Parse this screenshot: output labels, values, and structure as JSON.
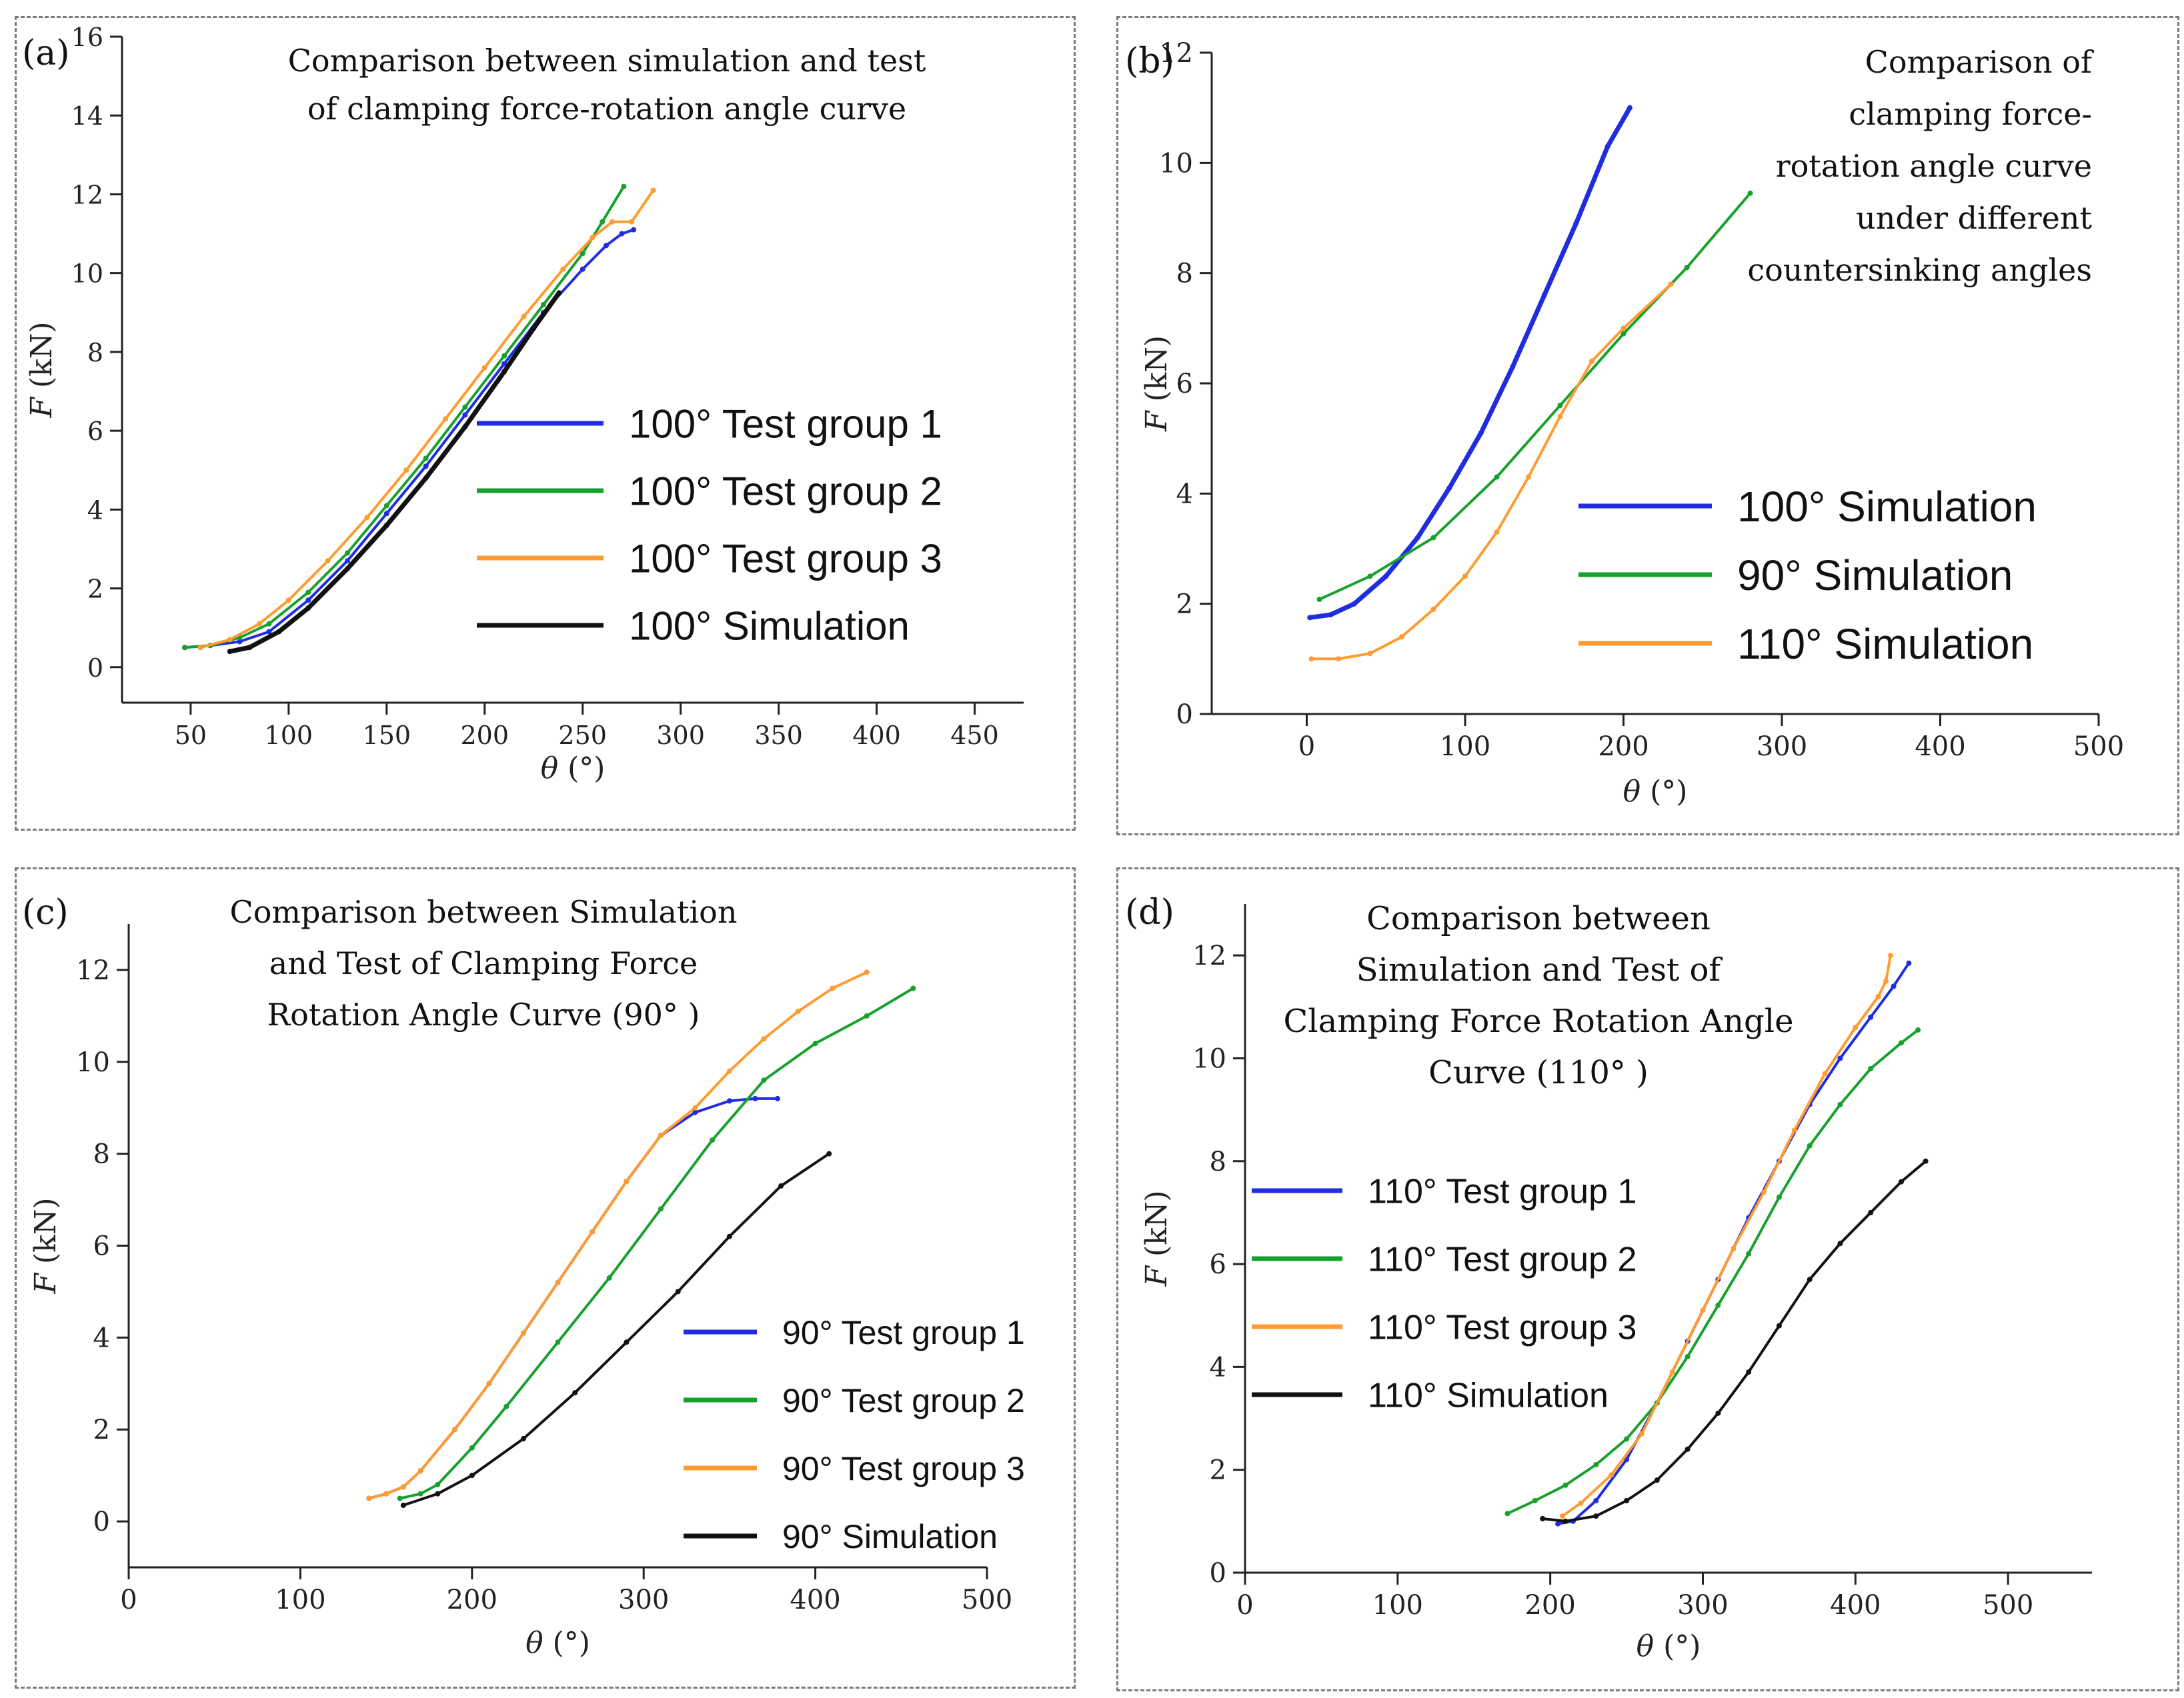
{
  "chart_data": [
    {
      "panel_label": "(a)",
      "type": "line",
      "title_lines": [
        "Comparison between simulation and test",
        "of clamping force-rotation angle curve"
      ],
      "xlabel_var": "θ",
      "xlabel_unit": " (°)",
      "ylabel_var": "F",
      "ylabel_unit": " (kN)",
      "xlim": [
        15,
        475
      ],
      "ylim": [
        -0.9,
        16
      ],
      "xticks": [
        50,
        100,
        150,
        200,
        250,
        300,
        350,
        400,
        450
      ],
      "yticks": [
        0,
        2,
        4,
        6,
        8,
        10,
        12,
        14,
        16
      ],
      "legend_position": "right",
      "series": [
        {
          "name": "100°  Test group 1",
          "color": "#1f2de0",
          "x": [
            47,
            60,
            75,
            90,
            110,
            130,
            150,
            170,
            190,
            210,
            230,
            250,
            262,
            270,
            276
          ],
          "y": [
            0.5,
            0.55,
            0.65,
            0.9,
            1.7,
            2.7,
            3.9,
            5.1,
            6.4,
            7.7,
            9.0,
            10.1,
            10.7,
            11.0,
            11.1
          ]
        },
        {
          "name": "100°  Test group 2",
          "color": "#16a12c",
          "x": [
            47,
            60,
            75,
            90,
            110,
            130,
            150,
            170,
            190,
            210,
            230,
            250,
            260,
            271
          ],
          "y": [
            0.5,
            0.55,
            0.75,
            1.1,
            1.9,
            2.9,
            4.1,
            5.3,
            6.6,
            7.9,
            9.2,
            10.5,
            11.3,
            12.2
          ]
        },
        {
          "name": "100°  Test group 3",
          "color": "#ff9b30",
          "x": [
            55,
            70,
            85,
            100,
            120,
            140,
            160,
            180,
            200,
            220,
            240,
            255,
            265,
            275,
            286
          ],
          "y": [
            0.5,
            0.7,
            1.1,
            1.7,
            2.7,
            3.8,
            5.0,
            6.3,
            7.6,
            8.9,
            10.1,
            10.9,
            11.3,
            11.3,
            12.1
          ]
        },
        {
          "name": "100°  Simulation",
          "color": "#111111",
          "x": [
            70,
            80,
            95,
            110,
            130,
            150,
            170,
            190,
            210,
            225,
            238
          ],
          "y": [
            0.4,
            0.5,
            0.9,
            1.5,
            2.5,
            3.6,
            4.8,
            6.1,
            7.5,
            8.6,
            9.5
          ]
        }
      ]
    },
    {
      "panel_label": "(b)",
      "type": "line",
      "title_lines": [
        "Comparison of",
        "clamping force-",
        "rotation angle curve",
        "under different",
        "countersinking angles"
      ],
      "xlabel_var": "θ",
      "xlabel_unit": " (°)",
      "ylabel_var": "F",
      "ylabel_unit": " (kN)",
      "xlim": [
        -60,
        500
      ],
      "ylim": [
        0,
        12
      ],
      "xticks": [
        0,
        100,
        200,
        300,
        400,
        500
      ],
      "yticks": [
        0,
        2,
        4,
        6,
        8,
        10,
        12
      ],
      "legend_position": "right",
      "series": [
        {
          "name": "100°  Simulation",
          "color": "#1f2de0",
          "x": [
            2,
            15,
            30,
            50,
            70,
            90,
            110,
            130,
            150,
            170,
            190,
            204
          ],
          "y": [
            1.75,
            1.8,
            2.0,
            2.5,
            3.2,
            4.1,
            5.1,
            6.3,
            7.6,
            8.9,
            10.3,
            11.0
          ]
        },
        {
          "name": "90°  Simulation",
          "color": "#16a12c",
          "x": [
            8,
            40,
            80,
            120,
            160,
            200,
            240,
            280
          ],
          "y": [
            2.08,
            2.5,
            3.2,
            4.3,
            5.6,
            6.9,
            8.1,
            9.45
          ]
        },
        {
          "name": "110°  Simulation",
          "color": "#ff9b30",
          "x": [
            3,
            20,
            40,
            60,
            80,
            100,
            120,
            140,
            160,
            180,
            200,
            230
          ],
          "y": [
            1.0,
            1.0,
            1.1,
            1.4,
            1.9,
            2.5,
            3.3,
            4.3,
            5.4,
            6.4,
            7.0,
            7.8
          ]
        }
      ]
    },
    {
      "panel_label": "(c)",
      "type": "line",
      "title_lines": [
        "Comparison between Simulation",
        "and Test of Clamping Force",
        "Rotation Angle Curve (90°  )"
      ],
      "xlabel_var": "θ",
      "xlabel_unit": " (°)",
      "ylabel_var": "F",
      "ylabel_unit": " (kN)",
      "xlim": [
        0,
        500
      ],
      "ylim": [
        -1,
        13
      ],
      "xticks": [
        0,
        100,
        200,
        300,
        400,
        500
      ],
      "yticks": [
        0,
        2,
        4,
        6,
        8,
        10,
        12
      ],
      "legend_position": "lower right",
      "series": [
        {
          "name": "90°  Test group 1",
          "color": "#1f2de0",
          "x": [
            140,
            150,
            160,
            170,
            190,
            210,
            230,
            250,
            270,
            290,
            310,
            330,
            350,
            365,
            378
          ],
          "y": [
            0.5,
            0.6,
            0.75,
            1.1,
            2.0,
            3.0,
            4.1,
            5.2,
            6.3,
            7.4,
            8.4,
            8.9,
            9.15,
            9.2,
            9.2
          ]
        },
        {
          "name": "90°  Test group 2",
          "color": "#16a12c",
          "x": [
            158,
            170,
            180,
            200,
            220,
            250,
            280,
            310,
            340,
            370,
            400,
            430,
            457
          ],
          "y": [
            0.5,
            0.6,
            0.8,
            1.6,
            2.5,
            3.9,
            5.3,
            6.8,
            8.3,
            9.6,
            10.4,
            11.0,
            11.6
          ]
        },
        {
          "name": "90°  Test group 3",
          "color": "#ff9b30",
          "x": [
            140,
            150,
            160,
            170,
            190,
            210,
            230,
            250,
            270,
            290,
            310,
            330,
            350,
            370,
            390,
            410,
            430
          ],
          "y": [
            0.5,
            0.6,
            0.75,
            1.1,
            2.0,
            3.0,
            4.1,
            5.2,
            6.3,
            7.4,
            8.4,
            9.0,
            9.8,
            10.5,
            11.1,
            11.6,
            11.95
          ]
        },
        {
          "name": "90°  Simulation",
          "color": "#111111",
          "x": [
            160,
            180,
            200,
            230,
            260,
            290,
            320,
            350,
            380,
            408
          ],
          "y": [
            0.35,
            0.6,
            1.0,
            1.8,
            2.8,
            3.9,
            5.0,
            6.2,
            7.3,
            8.0
          ]
        }
      ]
    },
    {
      "panel_label": "(d)",
      "type": "line",
      "title_lines": [
        "Comparison between",
        "Simulation and Test of",
        "Clamping Force Rotation Angle",
        "Curve (110°  )"
      ],
      "xlabel_var": "θ",
      "xlabel_unit": " (°)",
      "ylabel_var": "F",
      "ylabel_unit": " (kN)",
      "xlim": [
        0,
        555
      ],
      "ylim": [
        0,
        13
      ],
      "xticks": [
        0,
        100,
        200,
        300,
        400,
        500
      ],
      "yticks": [
        0,
        2,
        4,
        6,
        8,
        10,
        12
      ],
      "legend_position": "left",
      "series": [
        {
          "name": "110°  Test group 1",
          "color": "#1f2de0",
          "x": [
            205,
            215,
            230,
            250,
            270,
            290,
            310,
            330,
            350,
            370,
            390,
            410,
            425,
            435
          ],
          "y": [
            0.95,
            1.0,
            1.4,
            2.2,
            3.3,
            4.5,
            5.7,
            6.9,
            8.0,
            9.1,
            10.0,
            10.8,
            11.4,
            11.85
          ]
        },
        {
          "name": "110°  Test group 2",
          "color": "#16a12c",
          "x": [
            172,
            190,
            210,
            230,
            250,
            270,
            290,
            310,
            330,
            350,
            370,
            390,
            410,
            430,
            441
          ],
          "y": [
            1.15,
            1.4,
            1.7,
            2.1,
            2.6,
            3.3,
            4.2,
            5.2,
            6.2,
            7.3,
            8.3,
            9.1,
            9.8,
            10.3,
            10.55
          ]
        },
        {
          "name": "110°  Test group 3",
          "color": "#ff9b30",
          "x": [
            208,
            220,
            240,
            260,
            280,
            300,
            320,
            340,
            360,
            380,
            400,
            415,
            420,
            423
          ],
          "y": [
            1.1,
            1.35,
            1.9,
            2.7,
            3.9,
            5.1,
            6.3,
            7.4,
            8.6,
            9.7,
            10.6,
            11.2,
            11.5,
            12.0
          ]
        },
        {
          "name": "110°  Simulation",
          "color": "#111111",
          "x": [
            195,
            210,
            230,
            250,
            270,
            290,
            310,
            330,
            350,
            370,
            390,
            410,
            430,
            446
          ],
          "y": [
            1.05,
            1.0,
            1.1,
            1.4,
            1.8,
            2.4,
            3.1,
            3.9,
            4.8,
            5.7,
            6.4,
            7.0,
            7.6,
            8.0
          ]
        }
      ]
    }
  ]
}
